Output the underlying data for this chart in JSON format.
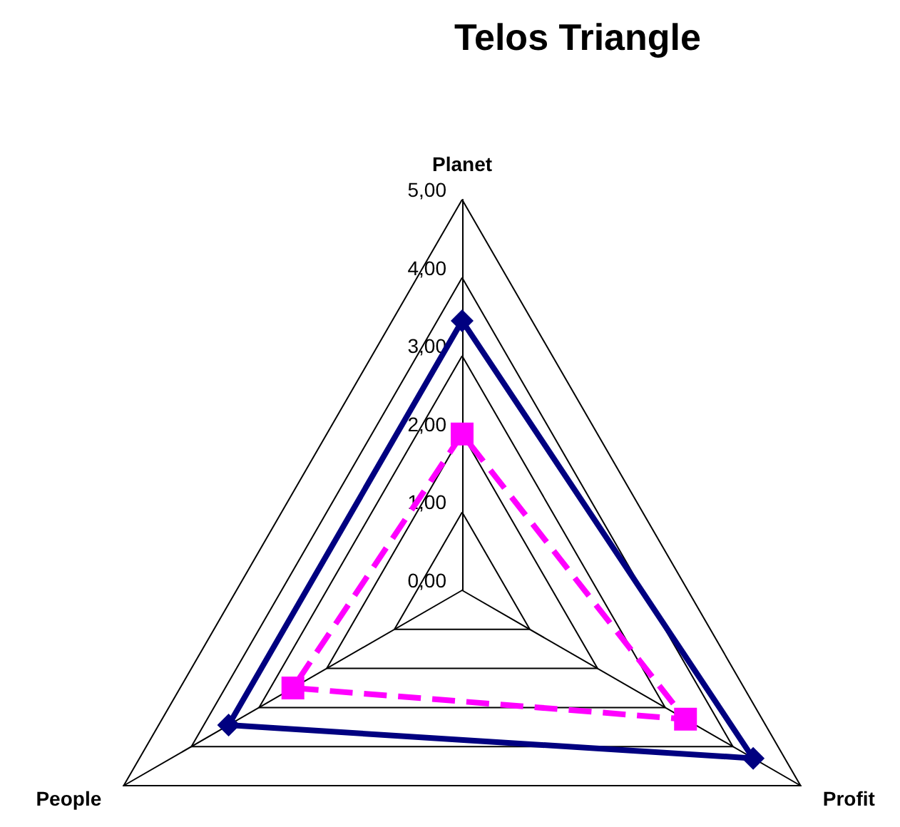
{
  "chart_data": {
    "type": "radar",
    "title": "Telos Triangle",
    "categories": [
      "Planet",
      "Profit",
      "People"
    ],
    "ylim": [
      0,
      5
    ],
    "yticks": [
      {
        "value": 0,
        "label": "0,00"
      },
      {
        "value": 1,
        "label": "1,00"
      },
      {
        "value": 2,
        "label": "2,00"
      },
      {
        "value": 3,
        "label": "3,00"
      },
      {
        "value": 4,
        "label": "4,00"
      },
      {
        "value": 5,
        "label": "5,00"
      }
    ],
    "series": [
      {
        "color": "#000080",
        "values": [
          3.45,
          4.3,
          3.45
        ],
        "marker": "diamond",
        "line_style": "solid"
      },
      {
        "color": "#ff00ff",
        "values": [
          2.0,
          3.3,
          2.5
        ],
        "marker": "square",
        "line_style": "dashed"
      }
    ],
    "grid": true
  }
}
